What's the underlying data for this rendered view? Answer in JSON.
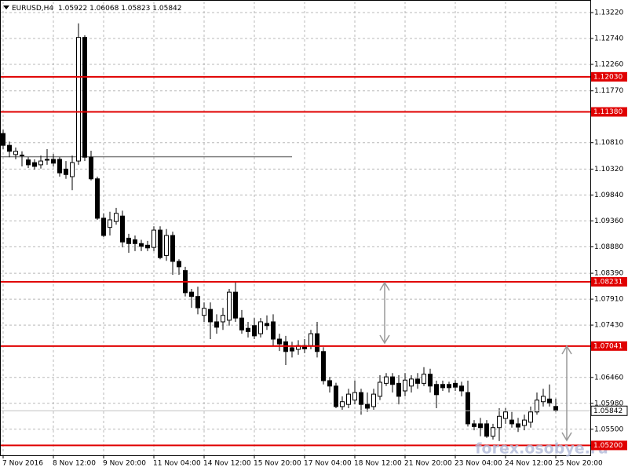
{
  "chart_data": {
    "type": "candlestick",
    "title": "EURUSD,H4",
    "watermark": "forex.osobye.ru",
    "categories": [
      "7 Nov 2016",
      null,
      null,
      null,
      null,
      null,
      null,
      null,
      "8 Nov 12:00",
      null,
      null,
      null,
      null,
      null,
      null,
      null,
      "9 Nov 20:00",
      null,
      null,
      null,
      null,
      null,
      null,
      null,
      "11 Nov 04:00",
      null,
      null,
      null,
      null,
      null,
      null,
      null,
      "14 Nov 12:00",
      null,
      null,
      null,
      null,
      null,
      null,
      null,
      "15 Nov 20:00",
      null,
      null,
      null,
      null,
      null,
      null,
      null,
      "17 Nov 04:00",
      null,
      null,
      null,
      null,
      null,
      null,
      null,
      "18 Nov 12:00",
      null,
      null,
      null,
      null,
      null,
      null,
      null,
      "21 Nov 20:00",
      null,
      null,
      null,
      null,
      null,
      null,
      null,
      "23 Nov 04:00",
      null,
      null,
      null,
      null,
      null,
      null,
      null,
      "24 Nov 12:00",
      null,
      null,
      null,
      null,
      null,
      null,
      null,
      "25 Nov 20:00"
    ],
    "open": [
      1.1098,
      1.1076,
      1.1059,
      1.1058,
      1.1049,
      1.1044,
      1.104,
      1.1049,
      1.105,
      1.105,
      1.1032,
      1.1018,
      1.1047,
      1.1276,
      1.1054,
      1.1014,
      1.0941,
      1.0924,
      1.0935,
      1.0945,
      1.0904,
      1.0901,
      1.0894,
      1.0891,
      1.0887,
      1.0919,
      1.0872,
      1.0909,
      1.0861,
      1.0844,
      1.0804,
      1.0796,
      1.0761,
      1.0772,
      1.0749,
      1.0749,
      1.0752,
      1.0804,
      1.0756,
      1.0737,
      1.0742,
      1.0727,
      1.0746,
      1.0749,
      1.0717,
      1.0712,
      1.0701,
      1.0698,
      1.0705,
      1.0705,
      1.0727,
      1.0694,
      1.064,
      1.063,
      1.0592,
      1.0596,
      1.0604,
      1.0618,
      1.0596,
      1.0592,
      1.0611,
      1.0635,
      1.0647,
      1.0635,
      1.0621,
      1.063,
      1.0643,
      1.0635,
      1.0652,
      1.0633,
      1.0633,
      1.0633,
      1.0635,
      1.063,
      1.0618,
      1.056,
      1.056,
      1.056,
      1.0537,
      1.0553,
      1.057,
      1.0567,
      1.056,
      1.0557,
      1.0563,
      1.0582,
      1.0601,
      1.0606,
      1.05922
    ],
    "high": [
      1.1105,
      1.1083,
      1.1072,
      1.1065,
      1.1054,
      1.105,
      1.1057,
      1.1069,
      1.106,
      1.1054,
      1.1047,
      1.1057,
      1.1302,
      1.128,
      1.1066,
      1.1018,
      1.095,
      1.0953,
      1.096,
      1.0955,
      1.0912,
      1.0909,
      1.0901,
      1.0899,
      1.0926,
      1.0926,
      1.0921,
      1.0916,
      1.0865,
      1.0851,
      1.081,
      1.0814,
      1.0785,
      1.0785,
      1.0763,
      1.0775,
      1.081,
      1.0822,
      1.0771,
      1.0749,
      1.0756,
      1.0756,
      1.0761,
      1.0763,
      1.0727,
      1.0723,
      1.0712,
      1.0715,
      1.0717,
      1.0734,
      1.0749,
      1.0702,
      1.0647,
      1.0636,
      1.0611,
      1.0625,
      1.064,
      1.0625,
      1.0618,
      1.0625,
      1.065,
      1.0654,
      1.0654,
      1.065,
      1.0654,
      1.065,
      1.0654,
      1.0665,
      1.0662,
      1.064,
      1.064,
      1.0638,
      1.0641,
      1.0638,
      1.064,
      1.0567,
      1.0571,
      1.0567,
      1.056,
      1.0589,
      1.0589,
      1.0582,
      1.0571,
      1.0577,
      1.0592,
      1.0618,
      1.0625,
      1.0633,
      1.06068
    ],
    "low": [
      1.1069,
      1.1054,
      1.105,
      1.1037,
      1.1034,
      1.1031,
      1.1033,
      1.104,
      1.1037,
      1.1018,
      1.1014,
      1.0993,
      1.104,
      1.1047,
      1.1011,
      1.0938,
      1.0906,
      1.0909,
      1.0929,
      1.0887,
      1.0877,
      1.088,
      1.088,
      1.088,
      1.088,
      1.0865,
      1.0862,
      1.0836,
      1.0836,
      1.0796,
      1.0775,
      1.0763,
      1.0749,
      1.0717,
      1.0727,
      1.0734,
      1.0742,
      1.0749,
      1.0727,
      1.072,
      1.0717,
      1.072,
      1.0734,
      1.0705,
      1.0695,
      1.0669,
      1.0683,
      1.0688,
      1.0691,
      1.0698,
      1.0683,
      1.0633,
      1.0618,
      1.0589,
      1.0586,
      1.0589,
      1.0596,
      1.0577,
      1.0582,
      1.0586,
      1.0604,
      1.063,
      1.0618,
      1.0596,
      1.0611,
      1.0618,
      1.0625,
      1.063,
      1.0618,
      1.0589,
      1.0621,
      1.0618,
      1.0621,
      1.0611,
      1.0555,
      1.0548,
      1.0537,
      1.0534,
      1.0531,
      1.0528,
      1.056,
      1.0553,
      1.0545,
      1.0548,
      1.0553,
      1.0577,
      1.0592,
      1.0592,
      1.05823
    ],
    "close": [
      1.1076,
      1.1065,
      1.1065,
      1.1057,
      1.104,
      1.1037,
      1.1047,
      1.105,
      1.1043,
      1.1025,
      1.1022,
      1.1044,
      1.1276,
      1.1054,
      1.1014,
      1.0941,
      1.0909,
      1.0938,
      1.095,
      1.0897,
      1.0894,
      1.0894,
      1.0889,
      1.0886,
      1.0919,
      1.0868,
      1.0909,
      1.0861,
      1.0851,
      1.0803,
      1.0796,
      1.0775,
      1.0774,
      1.0749,
      1.0739,
      1.0761,
      1.0804,
      1.0756,
      1.0734,
      1.0731,
      1.0723,
      1.0749,
      1.0742,
      1.0717,
      1.0708,
      1.0694,
      1.0695,
      1.0705,
      1.0699,
      1.0727,
      1.0694,
      1.064,
      1.063,
      1.0592,
      1.0601,
      1.0615,
      1.0618,
      1.0596,
      1.0589,
      1.0615,
      1.0637,
      1.0647,
      1.0633,
      1.0611,
      1.0641,
      1.0643,
      1.0635,
      1.0652,
      1.063,
      1.0614,
      1.0627,
      1.0627,
      1.0628,
      1.0621,
      1.056,
      1.0555,
      1.0553,
      1.0537,
      1.0553,
      1.0574,
      1.0582,
      1.056,
      1.0554,
      1.0567,
      1.0582,
      1.0604,
      1.0611,
      1.0599,
      1.05842
    ],
    "up_color": "#ffffff",
    "down_color": "#000000",
    "wick_color": "#000000",
    "ylim": [
      1.05017,
      1.13424
    ],
    "yticks": [
      {
        "value": 1.1322,
        "label": "1.13220"
      },
      {
        "value": 1.1274,
        "label": "1.12740"
      },
      {
        "value": 1.1226,
        "label": "1.12260"
      },
      {
        "value": 1.1177,
        "label": "1.11770"
      },
      {
        "value": 1.1081,
        "label": "1.10810"
      },
      {
        "value": 1.1032,
        "label": "1.10320"
      },
      {
        "value": 1.0984,
        "label": "1.09840"
      },
      {
        "value": 1.0936,
        "label": "1.09360"
      },
      {
        "value": 1.0888,
        "label": "1.08880"
      },
      {
        "value": 1.0839,
        "label": "1.08390"
      },
      {
        "value": 1.0791,
        "label": "1.07910"
      },
      {
        "value": 1.0743,
        "label": "1.07430"
      },
      {
        "value": 1.0646,
        "label": "1.06460"
      },
      {
        "value": 1.0598,
        "label": "1.05980"
      },
      {
        "value": 1.055,
        "label": "1.05500"
      }
    ],
    "grid": true,
    "levels": [
      {
        "value": 1.1203,
        "label": "1.12030"
      },
      {
        "value": 1.1138,
        "label": "1.11380"
      },
      {
        "value": 1.08231,
        "label": "1.08231"
      },
      {
        "value": 1.07041,
        "label": "1.07041"
      },
      {
        "value": 1.052,
        "label": "1.05200"
      }
    ],
    "level_color": "#e00000",
    "gray_level": {
      "value": 1.1055,
      "end_index": 46,
      "color": "#808080"
    }
  }
}
